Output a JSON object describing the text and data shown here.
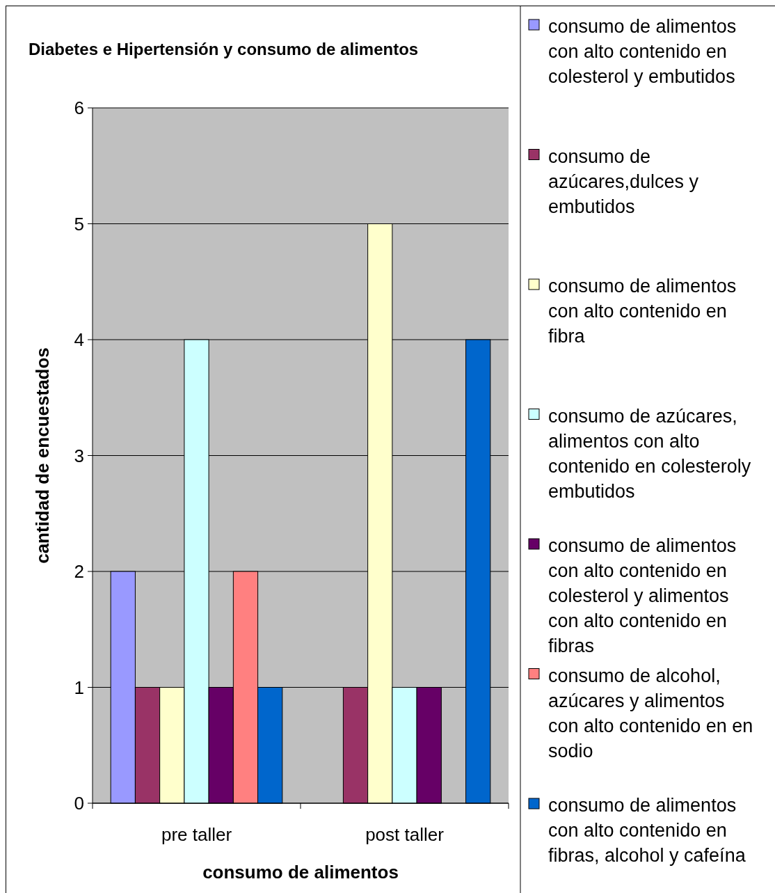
{
  "chart_data": {
    "type": "bar",
    "title": "Diabetes e Hipertensión y consumo de alimentos",
    "xlabel": "consumo de alimentos",
    "ylabel": "cantidad de encuestados",
    "categories": [
      "pre taller",
      "post taller"
    ],
    "series": [
      {
        "name": "consumo de alimentos con alto contenido en colesterol y embutidos",
        "color": "#9999ff",
        "values": [
          2,
          0
        ]
      },
      {
        "name": "consumo de azúcares,dulces y embutidos",
        "color": "#993366",
        "values": [
          1,
          1
        ]
      },
      {
        "name": "consumo de alimentos con alto contenido en fibra",
        "color": "#ffffcc",
        "values": [
          1,
          5
        ]
      },
      {
        "name": "consumo de azúcares, alimentos con alto contenido en colesteroly embutidos",
        "color": "#ccffff",
        "values": [
          4,
          1
        ]
      },
      {
        "name": "consumo de alimentos con alto contenido en colesterol y alimentos con alto contenido en fibras",
        "color": "#660066",
        "values": [
          1,
          1
        ]
      },
      {
        "name": "consumo de alcohol, azúcares y alimentos con alto contenido en en sodio",
        "color": "#ff8080",
        "values": [
          2,
          0
        ]
      },
      {
        "name": "consumo de alimentos con alto contenido en fibras, alcohol y cafeína",
        "color": "#0066cc",
        "values": [
          1,
          4
        ]
      }
    ],
    "ylim": [
      0,
      6
    ],
    "yticks": [
      0,
      1,
      2,
      3,
      4,
      5,
      6
    ],
    "grid": "y",
    "legend": "right"
  }
}
